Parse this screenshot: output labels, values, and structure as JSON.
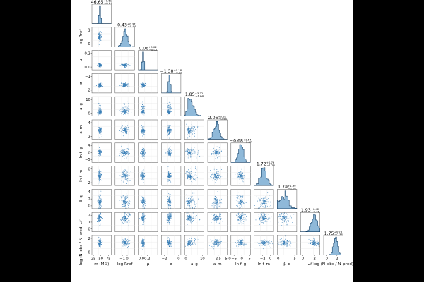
{
  "chart_data": {
    "type": "corner",
    "parameters": [
      {
        "key": "m",
        "label": "m (M⊙)",
        "title": "46.65",
        "up": "+0.61",
        "down": "-0.64",
        "center": 46.65,
        "range": [
          20,
          85
        ],
        "ticks": [
          "25",
          "50",
          "75"
        ],
        "tickvals": [
          25,
          50,
          75
        ],
        "shape": "peak",
        "width": 0.06
      },
      {
        "key": "lr",
        "label": "log Rref",
        "title": "-0.43",
        "up": "+0.37",
        "down": "-0.44",
        "center": -0.43,
        "range": [
          -2.5,
          1.5
        ],
        "ticks": [
          "-1",
          "0"
        ],
        "tickvals": [
          -1,
          0
        ],
        "shape": "normal",
        "width": 0.12
      },
      {
        "key": "mu",
        "label": "μ",
        "title": "0.06",
        "up": "+0.02",
        "down": "-0.02",
        "center": 0.06,
        "range": [
          -0.1,
          0.55
        ],
        "ticks": [
          "0.0",
          "0.2"
        ],
        "tickvals": [
          0.0,
          0.2
        ],
        "shape": "peak",
        "width": 0.06
      },
      {
        "key": "sg",
        "label": "σ",
        "title": "-1.30",
        "up": "+0.18",
        "down": "-0.18",
        "center": -1.3,
        "range": [
          -2.4,
          0.3
        ],
        "ticks": [
          "-2",
          "0"
        ],
        "tickvals": [
          -2,
          0
        ],
        "shape": "peak",
        "width": 0.08
      },
      {
        "key": "ag",
        "label": "a_g",
        "title": "1.85",
        "up": "+3.32",
        "down": "-1.64",
        "center": 1.85,
        "range": [
          -0.8,
          11
        ],
        "ticks": [
          "0",
          "10"
        ],
        "tickvals": [
          0,
          10
        ],
        "shape": "skew",
        "width": 0.2
      },
      {
        "key": "am",
        "label": "a_m",
        "title": "2.06",
        "up": "+0.81",
        "down": "-0.56",
        "center": 2.06,
        "range": [
          -0.2,
          4.8
        ],
        "ticks": [
          "2.5",
          "5.0"
        ],
        "tickvals": [
          2.5,
          5.0
        ],
        "shape": "normal",
        "width": 0.13
      },
      {
        "key": "fg",
        "label": "ln f_g",
        "title": "-0.68",
        "up": "+1.54",
        "down": "-1.67",
        "center": -0.68,
        "range": [
          -7,
          5.5
        ],
        "ticks": [
          "-5",
          "0",
          "5"
        ],
        "tickvals": [
          -5,
          0,
          5
        ],
        "shape": "normal",
        "width": 0.11
      },
      {
        "key": "fm",
        "label": "ln f_m",
        "title": "-1.72",
        "up": "+0.79",
        "down": "-1.28",
        "center": -1.72,
        "range": [
          -4.2,
          0.8
        ],
        "ticks": [
          "-2",
          "0"
        ],
        "tickvals": [
          -2,
          0
        ],
        "shape": "normal",
        "width": 0.16
      },
      {
        "key": "bq",
        "label": "β_q",
        "title": "1.79",
        "up": "+1.99",
        "down": "-1.32",
        "center": 1.79,
        "range": [
          -0.3,
          5.6
        ],
        "ticks": [
          "0",
          "5"
        ],
        "tickvals": [
          0,
          5
        ],
        "shape": "normal",
        "width": 0.2
      },
      {
        "key": "N",
        "label": "𝒩",
        "title": "1.93",
        "up": "+0.42",
        "down": "-0.76",
        "center": 1.93,
        "range": [
          -0.4,
          2.9
        ],
        "ticks": [
          "0",
          "2"
        ],
        "tickvals": [
          0,
          2
        ],
        "shape": "normal",
        "width": 0.14
      },
      {
        "key": "lg",
        "label": "log (N_obs^s / N_pred^s)",
        "title": "1.75",
        "up": "+0.28",
        "down": "-0.38",
        "center": 1.75,
        "range": [
          -0.6,
          3.2
        ],
        "ticks": [
          "0",
          "2"
        ],
        "tickvals": [
          0,
          2
        ],
        "shape": "normal",
        "width": 0.1
      }
    ],
    "y_ticks": {
      "lr": [
        "-1",
        "0"
      ],
      "mu": [
        "0.2",
        "0.0"
      ],
      "sg": [
        "-1",
        "-2"
      ],
      "ag": [
        "10",
        "0"
      ],
      "am": [
        "4",
        "2"
      ],
      "fg": [
        "5",
        "0",
        "-5"
      ],
      "fm": [
        "0",
        "-2"
      ],
      "bq": [
        "4",
        "2",
        "0"
      ],
      "N": [
        "2",
        "1",
        "0"
      ],
      "lg": [
        "2",
        "0"
      ]
    },
    "y_labels": [
      "log Rref",
      "μ",
      "σ",
      "a_g",
      "a_m",
      "ln f_g",
      "ln f_m",
      "β_q",
      "𝒩",
      "log (N_obs / N_pred)"
    ],
    "x_labels": [
      "m (M⊙)",
      "log Rref",
      "μ",
      "σ",
      "a_g",
      "a_m",
      "ln f_g",
      "ln f_m",
      "β_q",
      "𝒩",
      "log (N_obs / N_pred)"
    ],
    "colors": {
      "hist": "#3380b9",
      "edge": "#0f3c64",
      "scatter": "#3a7fb7"
    }
  }
}
